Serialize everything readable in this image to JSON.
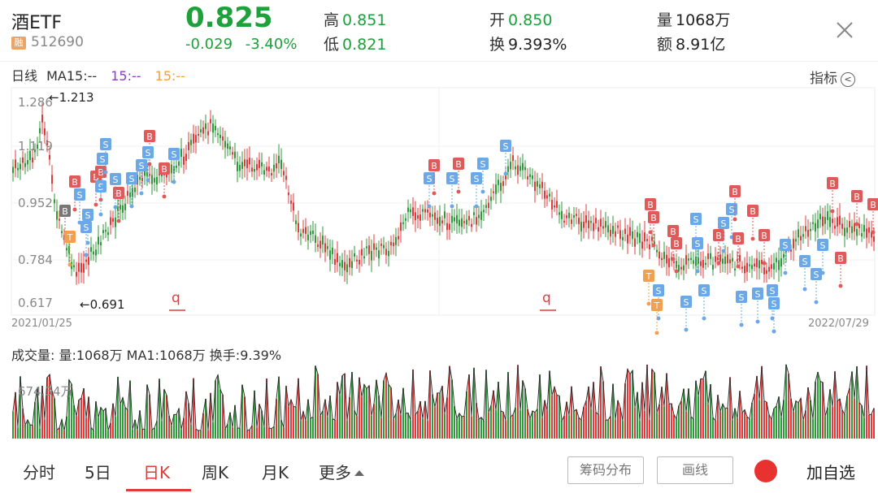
{
  "header": {
    "name": "酒ETF",
    "rong_badge": "融",
    "code": "512690",
    "price": "0.825",
    "change": "-0.029",
    "change_pct": "-3.40%",
    "high_label": "高",
    "high": "0.851",
    "low_label": "低",
    "low": "0.821",
    "open_label": "开",
    "open": "0.850",
    "turnover_label": "换",
    "turnover": "9.393%",
    "volume_label": "量",
    "volume": "1068万",
    "amount_label": "额",
    "amount": "8.91亿"
  },
  "chart": {
    "period_label": "日线",
    "ma_label_1": "MA15:--",
    "ma_label_2": "15:--",
    "ma_label_3": "15:--",
    "indicator_label": "指标",
    "y_ticks": [
      "1.286",
      "1.119",
      "0.952",
      "0.784",
      "0.617"
    ],
    "max_marker": "←1.213",
    "min_marker": "←0.691",
    "start_date": "2021/01/25",
    "end_date": "2022/07/29",
    "q_marker": "q",
    "colors": {
      "up": "#e03b3b",
      "down": "#2e9a3a",
      "buy": "#e05a5a",
      "sell": "#6aa8e8",
      "t": "#f0a050"
    }
  },
  "volume": {
    "header": "成交量: 量:1068万 MA1:1068万 换手:9.39%",
    "tick": "674.34万"
  },
  "bottom": {
    "tabs": [
      "分时",
      "5日",
      "日K",
      "周K",
      "月K",
      "更多"
    ],
    "active_tab": "日K",
    "chip_btn": "筹码分布",
    "draw_btn": "画线",
    "add_watch": "加自选"
  }
}
